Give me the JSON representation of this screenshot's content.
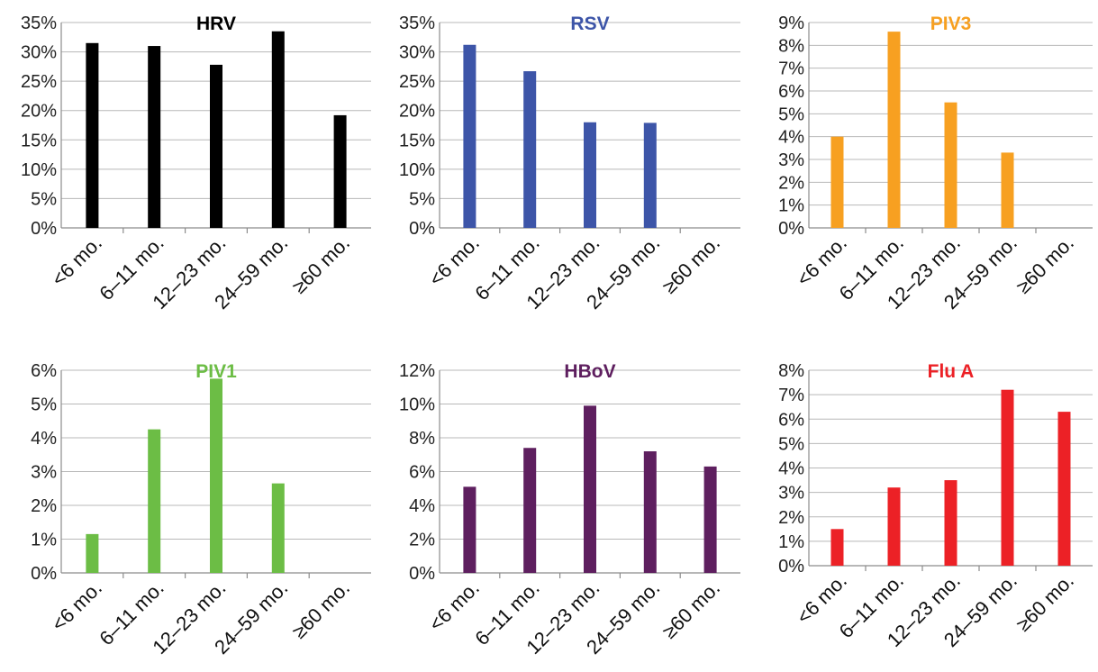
{
  "chart_data": [
    {
      "type": "bar",
      "title": "HRV",
      "color": "#000000",
      "categories": [
        "<6 mo.",
        "6–11 mo.",
        "12–23 mo.",
        "24–59 mo.",
        "≥60 mo."
      ],
      "values": [
        31.5,
        31.0,
        27.8,
        33.5,
        19.2
      ],
      "ylim": [
        0,
        35
      ],
      "yticks": [
        "0%",
        "5%",
        "10%",
        "15%",
        "20%",
        "25%",
        "30%",
        "35%"
      ],
      "grid": true
    },
    {
      "type": "bar",
      "title": "RSV",
      "color": "#3d55a8",
      "categories": [
        "<6 mo.",
        "6–11 mo.",
        "12–23 mo.",
        "24–59 mo.",
        "≥60 mo."
      ],
      "values": [
        31.2,
        26.7,
        18.0,
        17.9,
        0
      ],
      "ylim": [
        0,
        35
      ],
      "yticks": [
        "0%",
        "5%",
        "10%",
        "15%",
        "20%",
        "25%",
        "30%",
        "35%"
      ],
      "grid": true
    },
    {
      "type": "bar",
      "title": "PIV3",
      "color": "#f7a021",
      "categories": [
        "<6 mo.",
        "6–11 mo.",
        "12–23 mo.",
        "24–59 mo.",
        "≥60 mo."
      ],
      "values": [
        4.0,
        8.6,
        5.5,
        3.3,
        0
      ],
      "ylim": [
        0,
        9
      ],
      "yticks": [
        "0%",
        "1%",
        "2%",
        "3%",
        "4%",
        "5%",
        "6%",
        "7%",
        "8%",
        "9%"
      ],
      "grid": true
    },
    {
      "type": "bar",
      "title": "PIV1",
      "color": "#6cbd45",
      "categories": [
        "<6 mo.",
        "6–11 mo.",
        "12–23 mo.",
        "24–59 mo.",
        "≥60 mo."
      ],
      "values": [
        1.15,
        4.25,
        5.75,
        2.65,
        0
      ],
      "ylim": [
        0,
        6
      ],
      "yticks": [
        "0%",
        "1%",
        "2%",
        "3%",
        "4%",
        "5%",
        "6%"
      ],
      "grid": true
    },
    {
      "type": "bar",
      "title": "HBoV",
      "color": "#5e1f5f",
      "categories": [
        "<6 mo.",
        "6–11 mo.",
        "12–23 mo.",
        "24–59 mo.",
        "≥60 mo."
      ],
      "values": [
        5.1,
        7.4,
        9.9,
        7.2,
        6.3
      ],
      "ylim": [
        0,
        12
      ],
      "yticks": [
        "0%",
        "2%",
        "4%",
        "6%",
        "8%",
        "10%",
        "12%"
      ],
      "grid": true
    },
    {
      "type": "bar",
      "title": "Flu A",
      "color": "#ec2126",
      "categories": [
        "<6 mo.",
        "6–11 mo.",
        "12–23 mo.",
        "24–59 mo.",
        "≥60 mo."
      ],
      "values": [
        1.5,
        3.2,
        3.5,
        7.2,
        6.3
      ],
      "ylim": [
        0,
        8
      ],
      "yticks": [
        "0%",
        "1%",
        "2%",
        "3%",
        "4%",
        "5%",
        "6%",
        "7%",
        "8%"
      ],
      "grid": true
    }
  ]
}
